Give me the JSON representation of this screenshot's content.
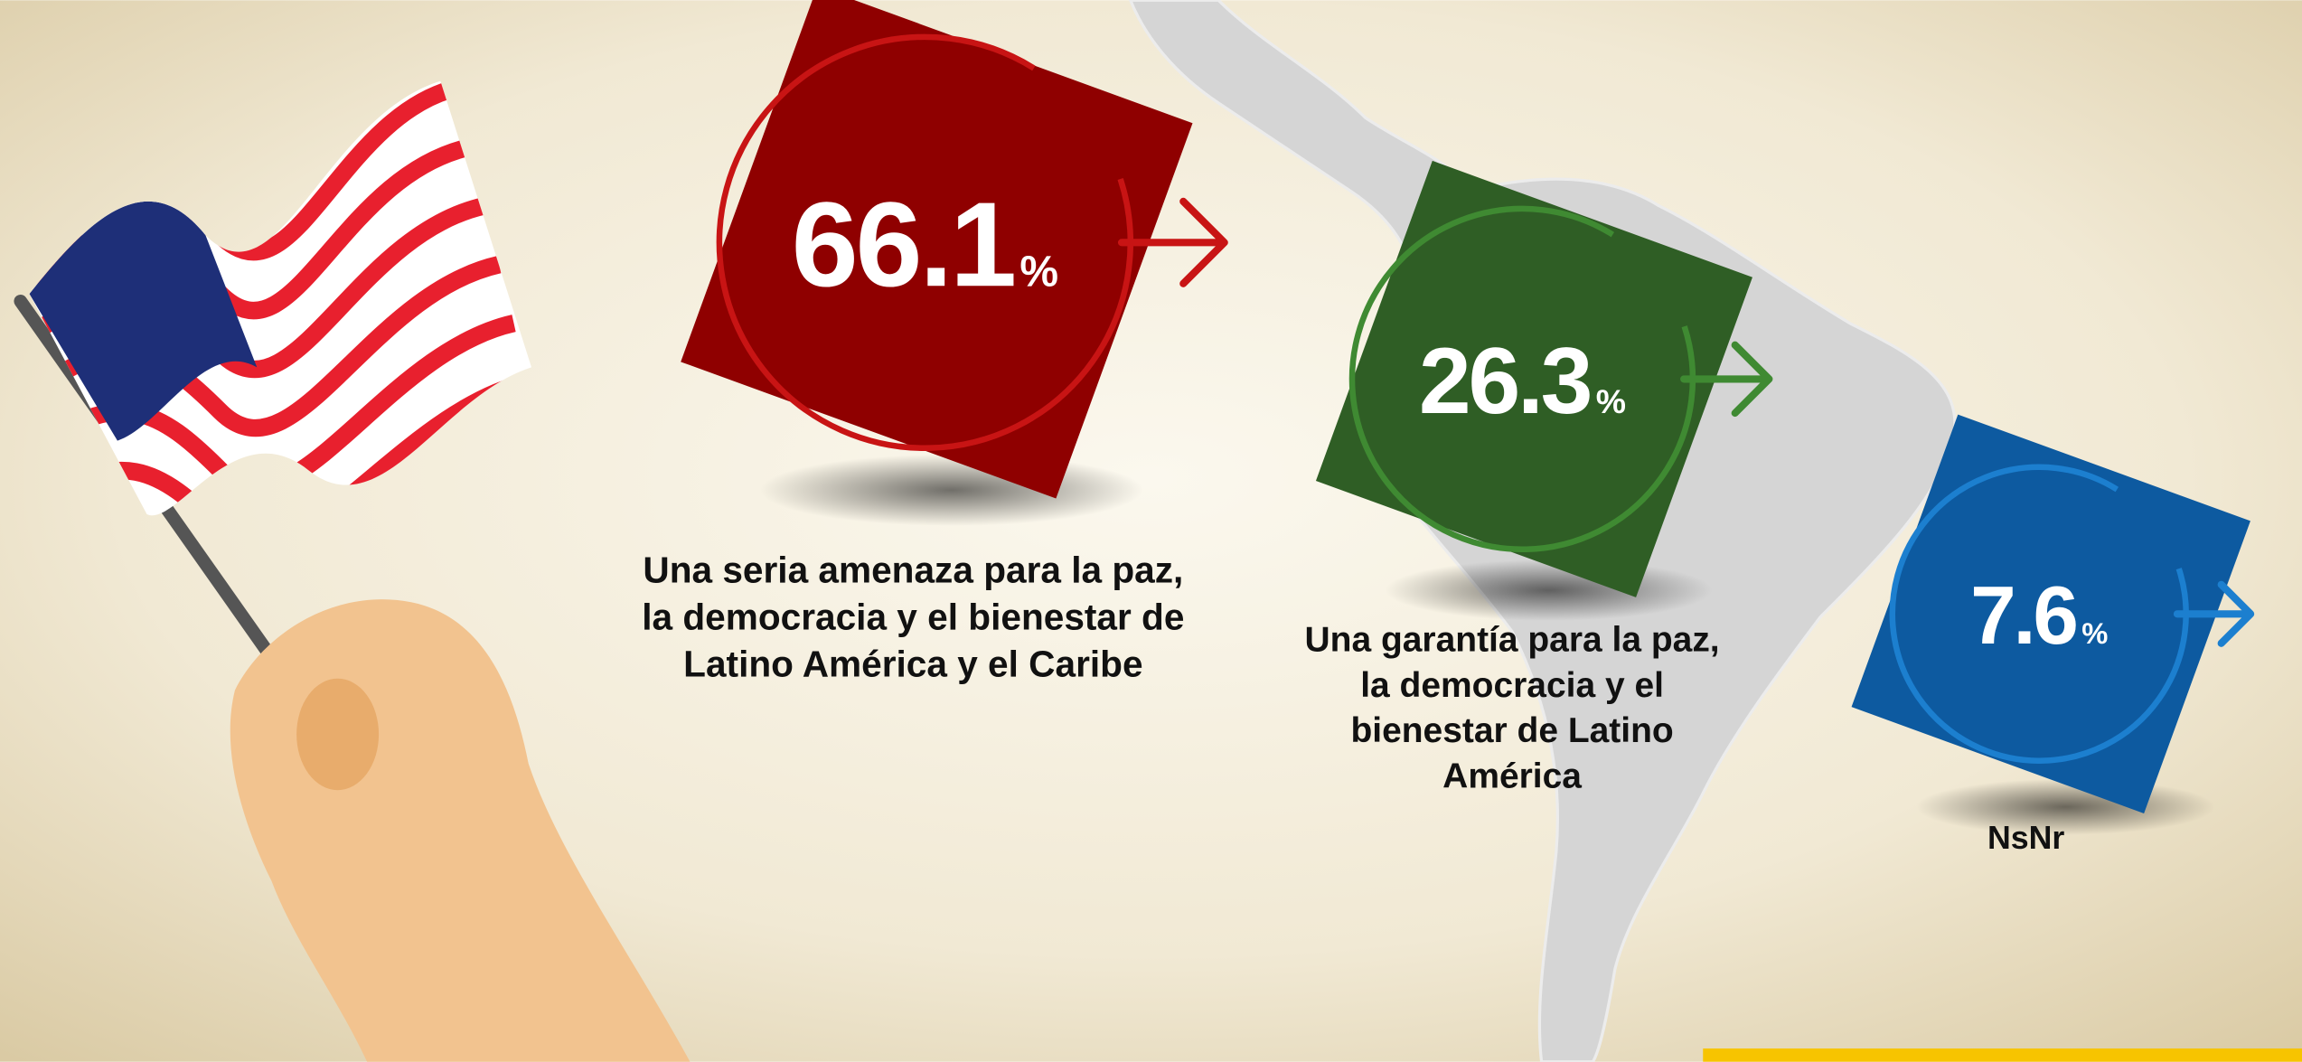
{
  "items": [
    {
      "value": 66.1,
      "unit": "%",
      "color": "#8f0000",
      "ring": "#c81414",
      "label": [
        "Una seria amenaza para la paz,",
        "la democracia y el bienestar de",
        "Latino América y el Caribe"
      ]
    },
    {
      "value": 26.3,
      "unit": "%",
      "color": "#2f5e25",
      "ring": "#3f8a32",
      "label": [
        "Una garantía para la paz,",
        "la democracia y el",
        "bienestar de Latino",
        "América"
      ]
    },
    {
      "value": 7.6,
      "unit": "%",
      "color": "#0d5aa0",
      "ring": "#1c7fcf",
      "label": [
        "NsNr"
      ]
    }
  ]
}
